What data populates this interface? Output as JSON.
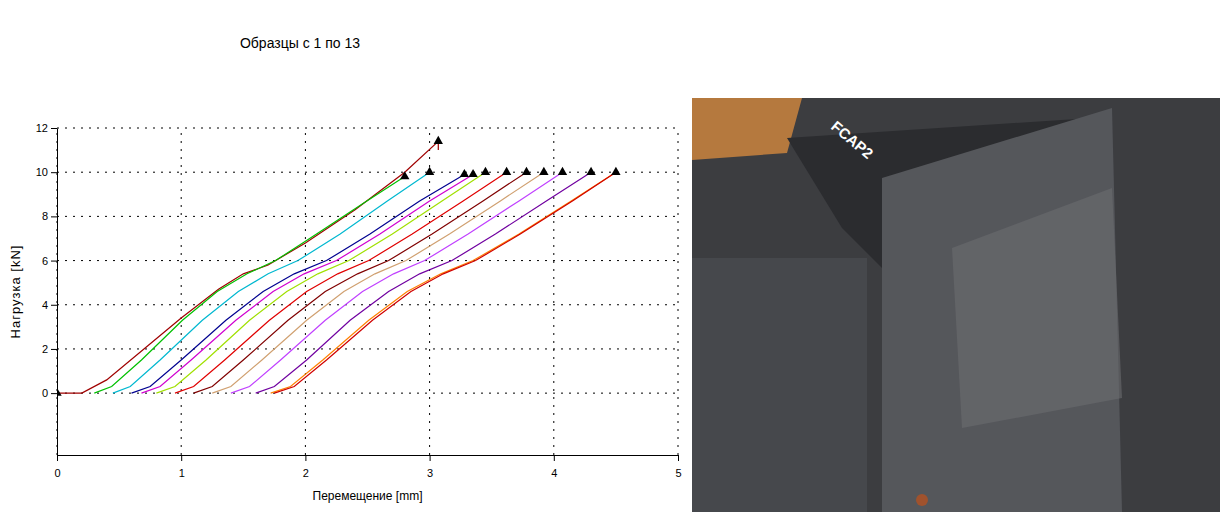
{
  "chart_data": {
    "type": "line",
    "title": "Образцы с 1 по 13",
    "x_label": "Перемещение [mm]",
    "y_label": "Нагрузка [kN]",
    "xlim": [
      0,
      5
    ],
    "xticks": [
      0,
      1,
      2,
      3,
      4,
      5
    ],
    "ylim": [
      -2.8,
      12
    ],
    "yticks": [
      0,
      2,
      4,
      6,
      8,
      10,
      12
    ],
    "grid": true,
    "series": [
      {
        "type": "line",
        "color": "#a00000",
        "x": [
          0,
          0.2,
          0.4,
          0.7,
          1.0,
          1.3,
          1.5,
          1.7,
          2.0,
          2.4,
          2.8,
          3.07,
          3.07
        ],
        "values": [
          0,
          0,
          0.6,
          2.0,
          3.4,
          4.7,
          5.4,
          5.8,
          6.8,
          8.3,
          10.0,
          11.4,
          11.0
        ]
      },
      {
        "type": "line",
        "color": "#00c000",
        "x": [
          0.3,
          0.44,
          0.68,
          1.01,
          1.29,
          1.53,
          1.76,
          2.09,
          2.47,
          2.8
        ],
        "values": [
          0,
          0.3,
          1.5,
          3.3,
          4.6,
          5.4,
          6.0,
          7.2,
          8.6,
          9.8
        ]
      },
      {
        "type": "line",
        "color": "#00b8d0",
        "x": [
          0.45,
          0.59,
          0.83,
          1.17,
          1.46,
          1.7,
          1.94,
          2.28,
          2.66,
          3.0
        ],
        "values": [
          0,
          0.3,
          1.5,
          3.3,
          4.6,
          5.4,
          6.0,
          7.2,
          8.7,
          10.0
        ]
      },
      {
        "type": "line",
        "color": "#000090",
        "x": [
          0.6,
          0.75,
          1.0,
          1.36,
          1.66,
          1.91,
          2.17,
          2.52,
          2.92,
          3.28
        ],
        "values": [
          0,
          0.3,
          1.5,
          3.3,
          4.6,
          5.4,
          6.0,
          7.2,
          8.7,
          9.9
        ]
      },
      {
        "type": "line",
        "color": "#d000d0",
        "x": [
          0.68,
          0.83,
          1.08,
          1.44,
          1.74,
          1.99,
          2.25,
          2.6,
          3.0,
          3.35
        ],
        "values": [
          0,
          0.3,
          1.5,
          3.3,
          4.6,
          5.4,
          6.0,
          7.2,
          8.7,
          9.9
        ]
      },
      {
        "type": "line",
        "color": "#a0e000",
        "x": [
          0.8,
          0.95,
          1.2,
          1.55,
          1.85,
          2.1,
          2.35,
          2.7,
          3.1,
          3.45
        ],
        "values": [
          0,
          0.3,
          1.5,
          3.3,
          4.6,
          5.4,
          6.0,
          7.2,
          8.7,
          10.0
        ]
      },
      {
        "type": "line",
        "color": "#e00000",
        "x": [
          0.95,
          1.1,
          1.35,
          1.71,
          2.01,
          2.26,
          2.51,
          2.86,
          3.27,
          3.62
        ],
        "values": [
          0,
          0.3,
          1.5,
          3.3,
          4.6,
          5.4,
          6.0,
          7.2,
          8.7,
          10.0
        ]
      },
      {
        "type": "line",
        "color": "#800000",
        "x": [
          1.1,
          1.25,
          1.5,
          1.86,
          2.16,
          2.42,
          2.67,
          3.02,
          3.43,
          3.78
        ],
        "values": [
          0,
          0.3,
          1.5,
          3.3,
          4.6,
          5.4,
          6.0,
          7.2,
          8.7,
          10.0
        ]
      },
      {
        "type": "line",
        "color": "#d0a070",
        "x": [
          1.25,
          1.4,
          1.65,
          2.01,
          2.31,
          2.56,
          2.81,
          3.16,
          3.57,
          3.92
        ],
        "values": [
          0,
          0.3,
          1.5,
          3.3,
          4.6,
          5.4,
          6.0,
          7.2,
          8.7,
          10.0
        ]
      },
      {
        "type": "line",
        "color": "#c040ff",
        "x": [
          1.4,
          1.55,
          1.8,
          2.16,
          2.46,
          2.71,
          2.96,
          3.31,
          3.72,
          4.07
        ],
        "values": [
          0,
          0.3,
          1.5,
          3.3,
          4.6,
          5.4,
          6.0,
          7.2,
          8.7,
          10.0
        ]
      },
      {
        "type": "line",
        "color": "#7000a0",
        "x": [
          1.6,
          1.75,
          2.01,
          2.36,
          2.67,
          2.92,
          3.18,
          3.53,
          3.94,
          4.3
        ],
        "values": [
          0,
          0.3,
          1.5,
          3.3,
          4.6,
          5.4,
          6.0,
          7.2,
          8.7,
          10.0
        ]
      },
      {
        "type": "line",
        "color": "#ff8000",
        "x": [
          1.72,
          1.88,
          2.14,
          2.51,
          2.82,
          3.09,
          3.35,
          3.72,
          4.14,
          4.5
        ],
        "values": [
          0,
          0.3,
          1.5,
          3.3,
          4.6,
          5.4,
          6.0,
          7.2,
          8.7,
          10.0
        ]
      },
      {
        "type": "line",
        "color": "#d00000",
        "x": [
          1.75,
          1.91,
          2.17,
          2.54,
          2.85,
          3.11,
          3.37,
          3.73,
          4.15,
          4.5
        ],
        "values": [
          0,
          0.3,
          1.5,
          3.3,
          4.6,
          5.4,
          6.0,
          7.2,
          8.7,
          10.0
        ]
      },
      {
        "type": "scatter",
        "marker": "triangle",
        "color": "#000000",
        "x": [
          0,
          2.8,
          3.0,
          3.07,
          3.28,
          3.35,
          3.45,
          3.62,
          3.78,
          3.92,
          4.07,
          4.3,
          4.5
        ],
        "values": [
          0,
          9.8,
          10.0,
          11.4,
          9.9,
          9.9,
          10.0,
          10.0,
          10.0,
          10.0,
          10.0,
          10.0,
          10.0
        ]
      }
    ]
  },
  "photo": {
    "label": "FCAP2"
  }
}
